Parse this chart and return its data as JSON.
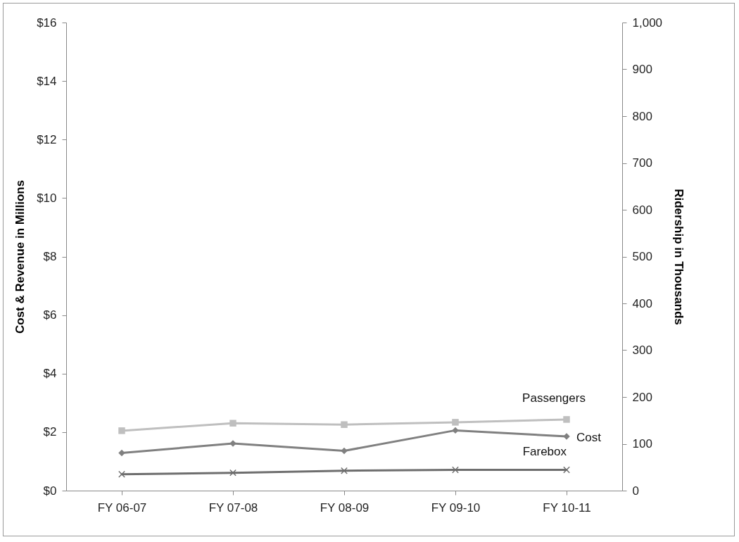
{
  "chart_data": {
    "type": "line",
    "categories": [
      "FY 06-07",
      "FY 07-08",
      "FY 08-09",
      "FY 09-10",
      "FY 10-11"
    ],
    "ylabel": "Cost & Revenue in Millions",
    "y2label": "Ridership in Thousands",
    "ylim": [
      0,
      16
    ],
    "yticks": [
      {
        "value": 0,
        "label": "$0"
      },
      {
        "value": 2,
        "label": "$2"
      },
      {
        "value": 4,
        "label": "$4"
      },
      {
        "value": 6,
        "label": "$6"
      },
      {
        "value": 8,
        "label": "$8"
      },
      {
        "value": 10,
        "label": "$10"
      },
      {
        "value": 12,
        "label": "$12"
      },
      {
        "value": 14,
        "label": "$14"
      },
      {
        "value": 16,
        "label": "$16"
      }
    ],
    "y2lim": [
      0,
      1000
    ],
    "y2ticks": [
      0,
      100,
      200,
      300,
      400,
      500,
      600,
      700,
      800,
      900,
      {
        "value": 1000,
        "label": "1,000"
      }
    ],
    "grid": false,
    "series": [
      {
        "name": "Passengers",
        "color": "#bfbfbf",
        "marker": "square",
        "axis": "y2",
        "values": [
          128,
          144,
          141,
          146,
          152
        ]
      },
      {
        "name": "Cost",
        "color": "#808080",
        "marker": "diamond",
        "axis": "y",
        "values": [
          1.29,
          1.61,
          1.36,
          2.06,
          1.85
        ]
      },
      {
        "name": "Farebox",
        "color": "#6e6e6e",
        "marker": "cross",
        "axis": "y",
        "values": [
          0.56,
          0.61,
          0.68,
          0.71,
          0.71
        ]
      }
    ]
  }
}
